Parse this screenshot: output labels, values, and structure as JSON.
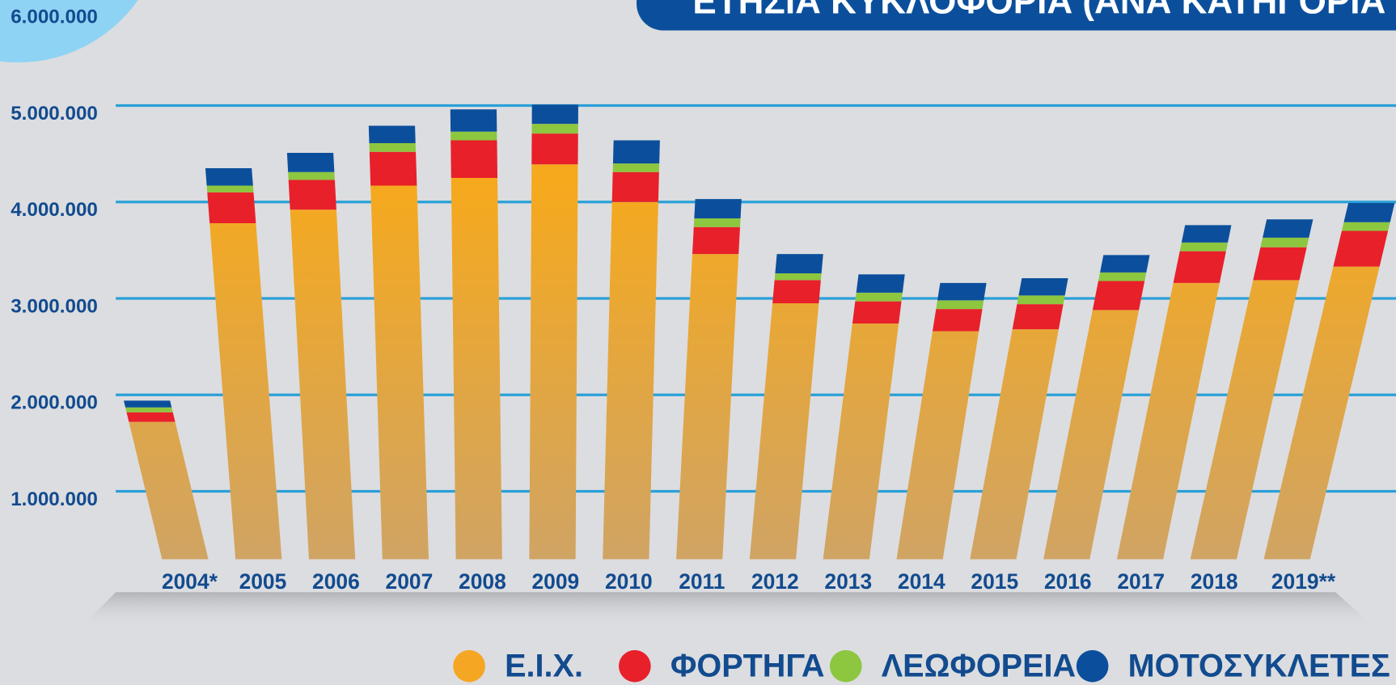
{
  "chart_data": {
    "type": "bar",
    "stacked": true,
    "title": "ΕΤΗΣΙΑ ΚΥΚΛΟΦΟΡΙΑ (ΑΝΑ ΚΑΤΗΓΟΡΙΑ ΟΧ",
    "categories": [
      "2004*",
      "2005",
      "2006",
      "2007",
      "2008",
      "2009",
      "2010",
      "2011",
      "2012",
      "2013",
      "2014",
      "2015",
      "2016",
      "2017",
      "2018",
      "2019**"
    ],
    "series": [
      {
        "name": "Ε.Ι.Χ.",
        "color": "#f5a623",
        "values": [
          1720000,
          3780000,
          3920000,
          4170000,
          4250000,
          4390000,
          4000000,
          3460000,
          2950000,
          2740000,
          2660000,
          2680000,
          2880000,
          3160000,
          3190000,
          3330000
        ]
      },
      {
        "name": "ΦΟΡΤΗΓΑ",
        "color": "#e8202a",
        "values": [
          100000,
          320000,
          310000,
          350000,
          390000,
          320000,
          310000,
          280000,
          240000,
          230000,
          230000,
          260000,
          300000,
          330000,
          340000,
          370000
        ]
      },
      {
        "name": "ΛΕΩΦΟΡΕΙΑ",
        "color": "#8dc63f",
        "values": [
          50000,
          70000,
          80000,
          90000,
          90000,
          100000,
          90000,
          90000,
          70000,
          90000,
          90000,
          90000,
          90000,
          90000,
          100000,
          90000
        ]
      },
      {
        "name": "ΜΟΤΟΣΥΚΛΕΤΕΣ",
        "color": "#0b4f9c",
        "values": [
          70000,
          180000,
          200000,
          180000,
          230000,
          200000,
          240000,
          200000,
          200000,
          190000,
          180000,
          180000,
          180000,
          180000,
          190000,
          200000
        ]
      }
    ],
    "ylim": [
      0,
      6000000
    ],
    "yticks": [
      {
        "value": 1000000,
        "label": "1.000.000"
      },
      {
        "value": 2000000,
        "label": "2.000.000"
      },
      {
        "value": 3000000,
        "label": "3.000.000"
      },
      {
        "value": 4000000,
        "label": "4.000.000"
      },
      {
        "value": 5000000,
        "label": "5.000.000"
      },
      {
        "value": 6000000,
        "label": "6.000.000"
      }
    ],
    "grid": true,
    "legend": "bottom"
  }
}
